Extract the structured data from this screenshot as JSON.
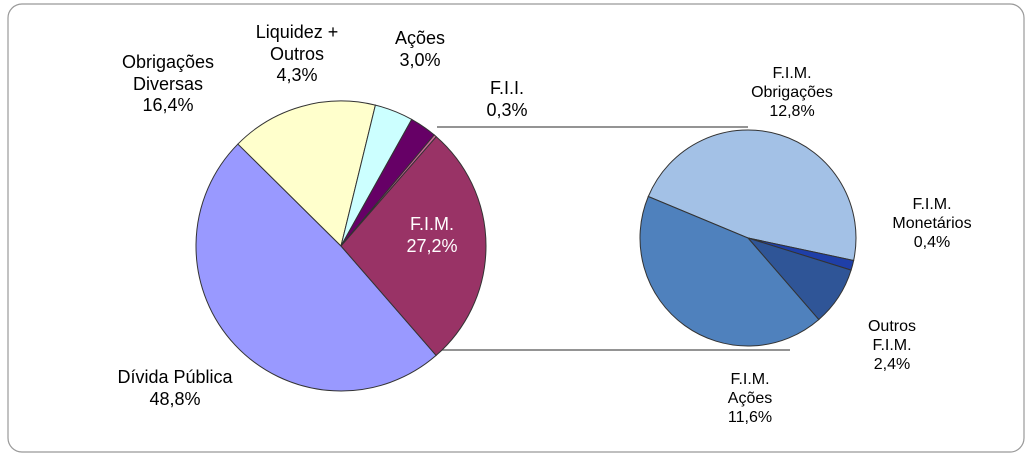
{
  "chart_data": [
    {
      "type": "pie",
      "categories": [
        "Dívida Pública",
        "Obrigações Diversas",
        "Liquidez + Outros",
        "Ações",
        "F.I.I.",
        "F.I.M."
      ],
      "values": [
        48.8,
        16.4,
        4.3,
        3.0,
        0.3,
        27.2
      ],
      "value_labels": [
        "48,8%",
        "16,4%",
        "4,3%",
        "3,0%",
        "0,3%",
        "27,2%"
      ],
      "colors": [
        "#9999ff",
        "#ffffcc",
        "#ccffff",
        "#660066",
        "#cc6699",
        "#993366"
      ]
    },
    {
      "type": "pie",
      "categories": [
        "F.I.M. Obrigações",
        "F.I.M. Monetários",
        "Outros F.I.M.",
        "F.I.M. Ações"
      ],
      "values": [
        12.8,
        0.4,
        2.4,
        11.6
      ],
      "value_labels": [
        "12,8%",
        "0,4%",
        "2,4%",
        "11,6%"
      ],
      "colors": [
        "#a3c1e6",
        "#1f3fa8",
        "#2f5597",
        "#4f81bd"
      ]
    }
  ]
}
